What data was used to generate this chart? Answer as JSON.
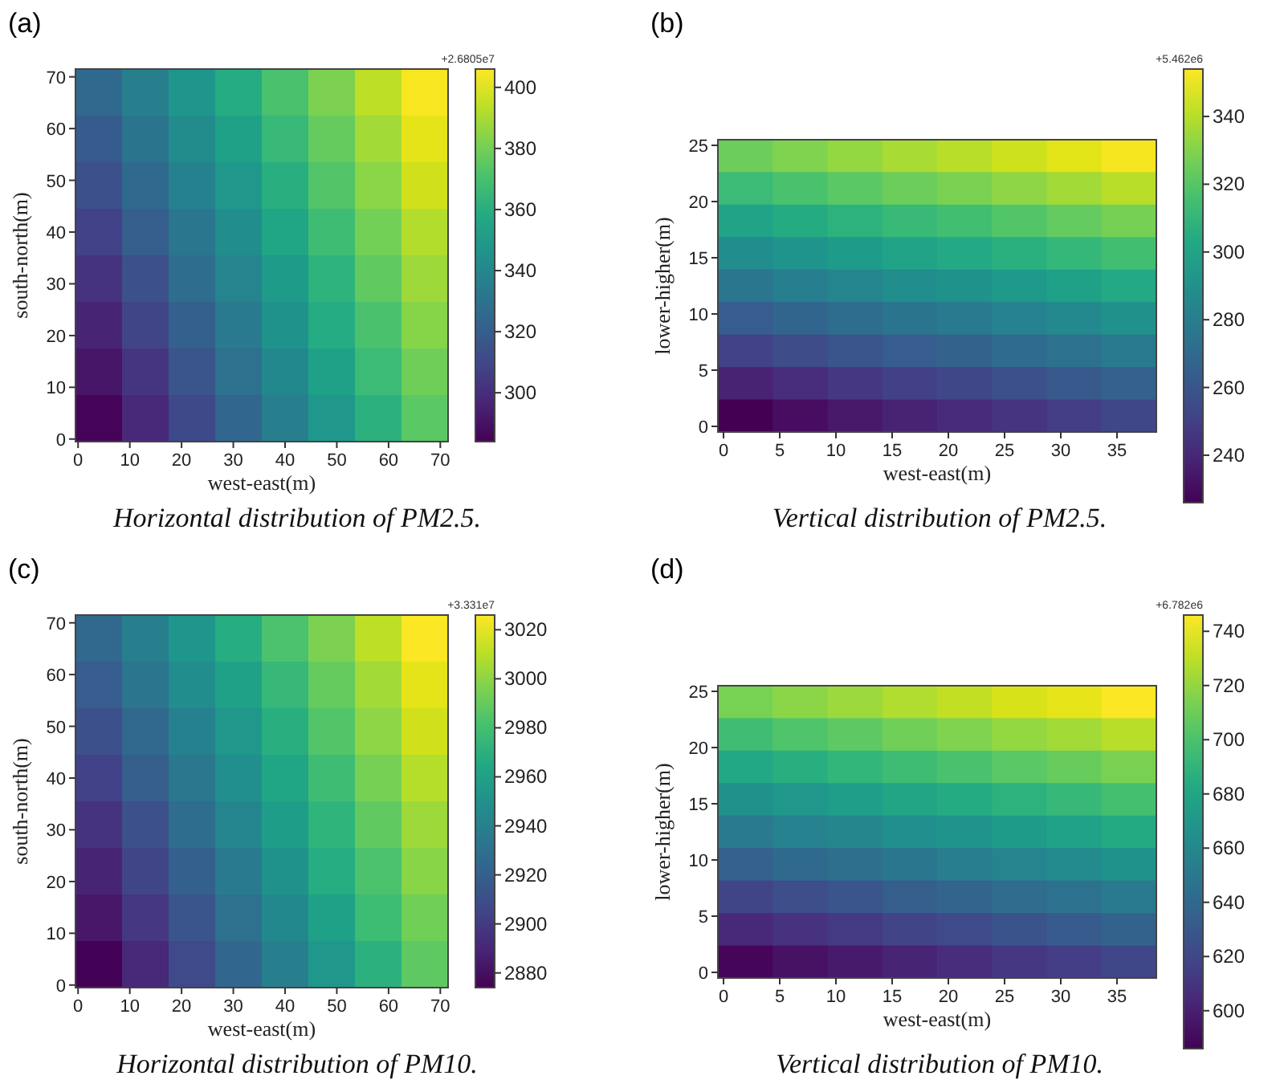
{
  "chart_data": [
    {
      "type": "heatmap",
      "title": "(a)",
      "xlabel": "west-east(m)",
      "ylabel": "south-north(m)",
      "clabel": "+2.6805e7",
      "annotations": [
        "Horizontal distribution of PM2.5."
      ],
      "x": [
        4,
        13,
        22,
        31,
        40,
        49,
        58,
        67
      ],
      "y": [
        67,
        58,
        49,
        40,
        31,
        22,
        13,
        4
      ],
      "xlim": [
        -0.5,
        71.5
      ],
      "xticks": [
        0,
        10,
        20,
        30,
        40,
        50,
        60,
        70
      ],
      "ylim": [
        -0.5,
        71.5
      ],
      "yticks": [
        0,
        10,
        20,
        30,
        40,
        50,
        60,
        70
      ],
      "clim": [
        284,
        406
      ],
      "cticks": [
        300,
        320,
        340,
        360,
        380,
        400
      ],
      "cells": [
        [
          325,
          336,
          348,
          359,
          371,
          382,
          394,
          405
        ],
        [
          319,
          331,
          343,
          354,
          366,
          377,
          389,
          401
        ],
        [
          314,
          325,
          337,
          349,
          361,
          373,
          385,
          397
        ],
        [
          308,
          320,
          332,
          344,
          356,
          368,
          380,
          392
        ],
        [
          302,
          314,
          327,
          339,
          351,
          363,
          376,
          388
        ],
        [
          296,
          309,
          321,
          334,
          346,
          359,
          371,
          384
        ],
        [
          291,
          303,
          316,
          329,
          341,
          354,
          367,
          379
        ],
        [
          285,
          298,
          311,
          324,
          336,
          349,
          362,
          375
        ]
      ]
    },
    {
      "type": "heatmap",
      "title": "(b)",
      "xlabel": "west-east(m)",
      "ylabel": "lower-higher(m)",
      "clabel": "+5.462e6",
      "annotations": [
        "Vertical distribution of PM2.5."
      ],
      "x": [
        1.94,
        6.81,
        11.69,
        16.56,
        21.44,
        26.31,
        31.19,
        36.06
      ],
      "y": [
        24.06,
        21.17,
        18.28,
        15.39,
        12.5,
        9.61,
        6.72,
        3.83,
        0.94
      ],
      "xlim": [
        -0.5,
        38.5
      ],
      "xticks": [
        0,
        5,
        10,
        15,
        20,
        25,
        30,
        35
      ],
      "ylim": [
        -0.5,
        25.5
      ],
      "yticks": [
        0,
        5,
        10,
        15,
        20,
        25
      ],
      "clim": [
        226,
        354
      ],
      "cticks": [
        240,
        260,
        280,
        300,
        320,
        340
      ],
      "cells": [
        [
          325,
          329,
          333,
          337,
          340,
          344,
          348,
          352
        ],
        [
          313,
          317,
          321,
          325,
          328,
          332,
          336,
          340
        ],
        [
          300,
          304,
          308,
          312,
          315,
          319,
          323,
          327
        ],
        [
          288,
          292,
          296,
          300,
          303,
          307,
          311,
          315
        ],
        [
          276,
          280,
          284,
          288,
          291,
          295,
          299,
          303
        ],
        [
          263,
          267,
          271,
          275,
          278,
          282,
          286,
          290
        ],
        [
          251,
          255,
          259,
          263,
          266,
          270,
          274,
          278
        ],
        [
          238,
          242,
          246,
          250,
          253,
          257,
          261,
          265
        ],
        [
          226,
          230,
          234,
          238,
          241,
          245,
          249,
          253
        ]
      ]
    },
    {
      "type": "heatmap",
      "title": "(c)",
      "xlabel": "west-east(m)",
      "ylabel": "south-north(m)",
      "clabel": "+3.331e7",
      "annotations": [
        "Horizontal distribution of PM10."
      ],
      "x": [
        4,
        13,
        22,
        31,
        40,
        49,
        58,
        67
      ],
      "y": [
        67,
        58,
        49,
        40,
        31,
        22,
        13,
        4
      ],
      "xlim": [
        -0.5,
        71.5
      ],
      "xticks": [
        0,
        10,
        20,
        30,
        40,
        50,
        60,
        70
      ],
      "ylim": [
        -0.5,
        71.5
      ],
      "yticks": [
        0,
        10,
        20,
        30,
        40,
        50,
        60,
        70
      ],
      "clim": [
        2874,
        3026
      ],
      "cticks": [
        2880,
        2900,
        2920,
        2940,
        2960,
        2980,
        3000,
        3020
      ],
      "cells": [
        [
          2925,
          2939,
          2954,
          2968,
          2983,
          2996,
          3011,
          3025
        ],
        [
          2918,
          2933,
          2948,
          2961,
          2976,
          2990,
          3005,
          3020
        ],
        [
          2911,
          2925,
          2940,
          2955,
          2970,
          2985,
          3000,
          3015
        ],
        [
          2904,
          2919,
          2934,
          2949,
          2964,
          2979,
          2994,
          3009
        ],
        [
          2896,
          2911,
          2928,
          2943,
          2958,
          2973,
          2989,
          3004
        ],
        [
          2889,
          2905,
          2920,
          2936,
          2951,
          2968,
          2983,
          2999
        ],
        [
          2883,
          2898,
          2914,
          2930,
          2945,
          2961,
          2978,
          2993
        ],
        [
          2875,
          2891,
          2908,
          2924,
          2939,
          2955,
          2971,
          2988
        ]
      ]
    },
    {
      "type": "heatmap",
      "title": "(d)",
      "xlabel": "west-east(m)",
      "ylabel": "lower-higher(m)",
      "clabel": "+6.782e6",
      "annotations": [
        "Vertical distribution of PM10."
      ],
      "x": [
        1.94,
        6.81,
        11.69,
        16.56,
        21.44,
        26.31,
        31.19,
        36.06
      ],
      "y": [
        24.06,
        21.17,
        18.28,
        15.39,
        12.5,
        9.61,
        6.72,
        3.83,
        0.94
      ],
      "xlim": [
        -0.5,
        38.5
      ],
      "xticks": [
        0,
        5,
        10,
        15,
        20,
        25,
        30,
        35
      ],
      "ylim": [
        -0.5,
        25.5
      ],
      "yticks": [
        0,
        5,
        10,
        15,
        20,
        25
      ],
      "clim": [
        586,
        746
      ],
      "cticks": [
        600,
        620,
        640,
        660,
        680,
        700,
        720,
        740
      ],
      "cells": [
        [
          713,
          718,
          722,
          727,
          731,
          736,
          740,
          745
        ],
        [
          697,
          702,
          706,
          711,
          715,
          720,
          724,
          729
        ],
        [
          682,
          687,
          691,
          696,
          700,
          705,
          709,
          714
        ],
        [
          666,
          671,
          675,
          680,
          684,
          689,
          693,
          698
        ],
        [
          651,
          656,
          660,
          665,
          669,
          674,
          678,
          683
        ],
        [
          635,
          640,
          644,
          649,
          653,
          658,
          662,
          667
        ],
        [
          619,
          624,
          628,
          633,
          637,
          642,
          646,
          651
        ],
        [
          604,
          609,
          613,
          618,
          622,
          627,
          631,
          636
        ],
        [
          588,
          593,
          597,
          602,
          606,
          611,
          615,
          620
        ]
      ]
    }
  ]
}
